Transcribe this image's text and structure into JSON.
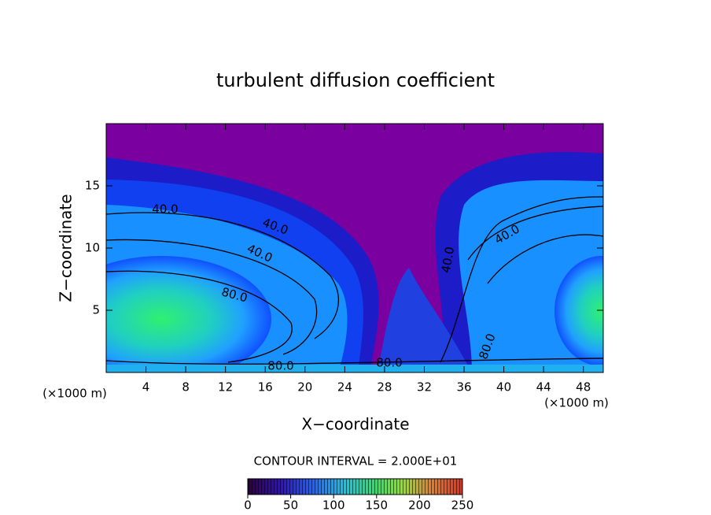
{
  "chart_data": {
    "type": "contour",
    "title": "turbulent diffusion coefficient",
    "xlabel": "X−coordinate",
    "ylabel": "Z−coordinate",
    "x_unit_left": "(×1000 m)",
    "x_unit_right": "(×1000 m)",
    "xlim": [
      0,
      50
    ],
    "xticks": [
      4,
      8,
      12,
      16,
      20,
      24,
      28,
      32,
      36,
      40,
      44,
      48
    ],
    "ylim": [
      0,
      20
    ],
    "yticks": [
      5,
      10,
      15
    ],
    "contour_interval": "CONTOUR INTERVAL = 2.000E+01",
    "contour_labels": [
      {
        "value": 40,
        "label": "40.0"
      },
      {
        "value": 40,
        "label": "40.0"
      },
      {
        "value": 40,
        "label": "40.0"
      },
      {
        "value": 40,
        "label": "40.0"
      },
      {
        "value": 40,
        "label": "40.0"
      },
      {
        "value": 80,
        "label": "80.0"
      },
      {
        "value": 80,
        "label": "80.0"
      },
      {
        "value": 80,
        "label": "80.0"
      },
      {
        "value": 80,
        "label": "80.0"
      }
    ],
    "colorbar": {
      "lim": [
        0,
        250
      ],
      "ticks": [
        0,
        50,
        100,
        150,
        200,
        250
      ]
    }
  }
}
